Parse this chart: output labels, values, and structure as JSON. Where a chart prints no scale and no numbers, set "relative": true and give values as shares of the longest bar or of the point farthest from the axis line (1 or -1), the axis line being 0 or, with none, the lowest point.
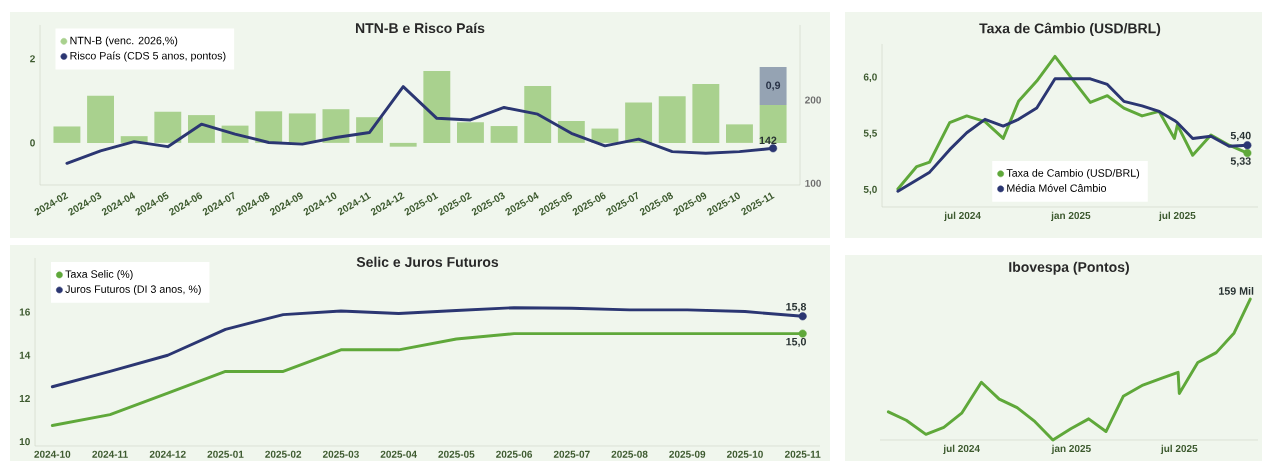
{
  "chart_data": [
    {
      "type": "bar",
      "title": "NTN-B e Risco País",
      "categories": [
        "2024-02",
        "2024-03",
        "2024-04",
        "2024-05",
        "2024-06",
        "2024-07",
        "2024-08",
        "2024-09",
        "2024-10",
        "2024-11",
        "2024-12",
        "2025-01",
        "2025-02",
        "2025-03",
        "2025-04",
        "2025-05",
        "2025-06",
        "2025-07",
        "2025-08",
        "2025-09",
        "2025-10",
        "2025-11"
      ],
      "stacked": true,
      "series": [
        {
          "name": "NTN-B (venc. 2026,%)",
          "color": "#a9d18e",
          "values": [
            0.39,
            1.12,
            0.16,
            0.74,
            0.66,
            0.41,
            0.75,
            0.7,
            0.8,
            0.61,
            -0.09,
            1.71,
            0.49,
            0.4,
            1.35,
            0.52,
            0.34,
            0.96,
            1.11,
            1.4,
            0.44,
            0.9
          ]
        },
        {
          "color": "#95a3b3",
          "values": [
            null,
            null,
            null,
            null,
            null,
            null,
            null,
            null,
            null,
            null,
            null,
            null,
            null,
            null,
            null,
            null,
            null,
            null,
            null,
            null,
            null,
            0.9
          ],
          "value_labels": [
            null,
            null,
            null,
            null,
            null,
            null,
            null,
            null,
            null,
            null,
            null,
            null,
            null,
            null,
            null,
            null,
            null,
            null,
            null,
            null,
            null,
            "0,9"
          ]
        },
        {
          "name": "Risco País (CDS 5 anos, pontos)",
          "type": "line",
          "axis": "y2",
          "color": "#2b3672",
          "values": [
            124,
            139,
            150,
            144,
            171,
            159,
            149,
            147,
            155,
            161,
            216,
            178,
            176,
            191,
            183,
            160,
            145,
            153,
            138,
            136,
            138,
            142
          ],
          "value_labels": [
            null,
            null,
            null,
            null,
            null,
            null,
            null,
            null,
            null,
            null,
            null,
            null,
            null,
            null,
            null,
            null,
            null,
            null,
            null,
            null,
            null,
            "142"
          ]
        }
      ],
      "ylim": [
        -1,
        2.8
      ],
      "yticks": [
        0,
        2
      ],
      "y2lim": [
        98,
        290
      ],
      "y2ticks": [
        100,
        200
      ],
      "legend": "top left"
    },
    {
      "type": "line",
      "title": "Taxa de Câmbio (USD/BRL)",
      "x": [
        "2024-03-13",
        "2024-04-14",
        "2024-05-06",
        "2024-06-09",
        "2024-07-08",
        "2024-08-08",
        "2024-09-08",
        "2024-10-04",
        "2024-11-04",
        "2024-12-05",
        "2025-01-06",
        "2025-02-03",
        "2025-03-04",
        "2025-04-01",
        "2025-05-02",
        "2025-05-31",
        "2025-06-26",
        "2025-07-01",
        "2025-07-27",
        "2025-08-27",
        "2025-09-27",
        "2025-10-28"
      ],
      "series": [
        {
          "name": "Taxa de Cambio (USD/BRL)",
          "color": "#5fa83a",
          "values": [
            5.01,
            5.21,
            5.25,
            5.6,
            5.66,
            5.61,
            5.46,
            5.79,
            5.97,
            6.19,
            5.97,
            5.78,
            5.84,
            5.73,
            5.66,
            5.7,
            5.46,
            5.58,
            5.31,
            5.49,
            5.4,
            5.33
          ],
          "value_labels": [
            null,
            null,
            null,
            null,
            null,
            null,
            null,
            null,
            null,
            null,
            null,
            null,
            null,
            null,
            null,
            null,
            null,
            null,
            null,
            null,
            null,
            "5,33"
          ]
        },
        {
          "name": "Média Móvel Câmbio",
          "color": "#2b3672",
          "values": [
            4.99,
            5.09,
            5.16,
            5.36,
            5.51,
            5.63,
            5.57,
            5.63,
            5.73,
            5.99,
            5.99,
            5.99,
            5.94,
            5.79,
            5.75,
            5.7,
            5.62,
            5.6,
            5.46,
            5.48,
            5.39,
            5.4
          ],
          "value_labels": [
            null,
            null,
            null,
            null,
            null,
            null,
            null,
            null,
            null,
            null,
            null,
            null,
            null,
            null,
            null,
            null,
            null,
            null,
            null,
            null,
            null,
            "5,40"
          ]
        }
      ],
      "xlim": [
        "2024-02-15",
        "2025-11-15"
      ],
      "ylim": [
        4.85,
        6.3
      ],
      "xticks": [
        {
          "value": "2024-07-01",
          "label": "jul 2024"
        },
        {
          "value": "2025-01-01",
          "label": "jan 2025"
        },
        {
          "value": "2025-07-01",
          "label": "jul 2025"
        }
      ],
      "yticks": [
        {
          "value": 5,
          "label": "5,0"
        },
        {
          "value": 5.5,
          "label": "5,5"
        },
        {
          "value": 6,
          "label": "6,0"
        }
      ],
      "legend": "bottom"
    },
    {
      "type": "line",
      "title": "Selic e Juros Futuros",
      "categories": [
        "2024-10",
        "2024-11",
        "2024-12",
        "2025-01",
        "2025-02",
        "2025-03",
        "2025-04",
        "2025-05",
        "2025-06",
        "2025-07",
        "2025-08",
        "2025-09",
        "2025-10",
        "2025-11"
      ],
      "series": [
        {
          "name": "Taxa Selic (%)",
          "color": "#5fa83a",
          "values": [
            10.75,
            11.25,
            12.25,
            13.25,
            13.25,
            14.25,
            14.25,
            14.75,
            15,
            15,
            15,
            15,
            15,
            15
          ],
          "value_labels": [
            null,
            null,
            null,
            null,
            null,
            null,
            null,
            null,
            null,
            null,
            null,
            null,
            null,
            "15,0"
          ]
        },
        {
          "name": "Juros Futuros (DI 3 anos, %)",
          "color": "#2b3672",
          "values": [
            12.54,
            13.25,
            14.0,
            15.2,
            15.88,
            16.05,
            15.93,
            16.07,
            16.2,
            16.17,
            16.1,
            16.1,
            16.02,
            15.8
          ],
          "value_labels": [
            null,
            null,
            null,
            null,
            null,
            null,
            null,
            null,
            null,
            null,
            null,
            null,
            null,
            "15,8"
          ]
        }
      ],
      "ylim": [
        9.8,
        18.5
      ],
      "yticks": [
        10,
        12,
        14,
        16
      ],
      "legend": "top left"
    },
    {
      "type": "line",
      "title": "Ibovespa (Pontos)",
      "relative": true,
      "tick_labels": "x",
      "x": [
        "2024-02-29",
        "2024-03-30",
        "2024-05-02",
        "2024-06-01",
        "2024-07-01",
        "2024-08-03",
        "2024-09-02",
        "2024-10-02",
        "2024-11-01",
        "2024-12-01",
        "2024-12-31",
        "2025-01-30",
        "2025-02-28",
        "2025-03-29",
        "2025-05-01",
        "2025-06-03",
        "2025-06-29",
        "2025-07-01",
        "2025-08-01",
        "2025-09-01",
        "2025-10-01",
        "2025-10-28"
      ],
      "series": [
        {
          "color": "#5fa83a",
          "values": [
            0.2,
            0.14,
            0.04,
            0.09,
            0.19,
            0.41,
            0.29,
            0.23,
            0.13,
            0.0,
            0.08,
            0.15,
            0.06,
            0.31,
            0.39,
            0.44,
            0.48,
            0.33,
            0.55,
            0.62,
            0.76,
            1.0
          ]
        }
      ],
      "annotations": [
        {
          "text": "159 Mil",
          "x": "2025-10-28",
          "y": 1.0
        }
      ],
      "xlim": [
        "2024-02-15",
        "2025-11-10"
      ],
      "xticks": [
        {
          "value": "2024-07-01",
          "label": "jul 2024"
        },
        {
          "value": "2025-01-01",
          "label": "jan 2025"
        },
        {
          "value": "2025-07-01",
          "label": "jul 2025"
        }
      ]
    }
  ]
}
